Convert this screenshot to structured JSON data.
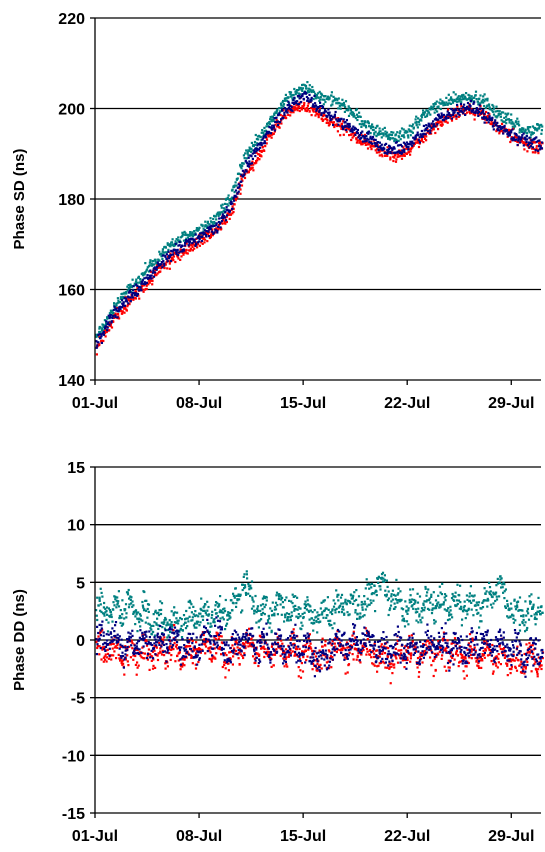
{
  "chart_data": [
    {
      "type": "scatter",
      "title": "",
      "xlabel": "",
      "ylabel": "Phase SD (ns)",
      "xlim": [
        "01-Jul",
        "31-Jul"
      ],
      "ylim": [
        140,
        220
      ],
      "yticks": [
        140,
        160,
        180,
        200,
        220
      ],
      "gridlines_y": [
        160,
        180,
        200,
        220
      ],
      "xtick_labels": [
        "01-Jul",
        "08-Jul",
        "15-Jul",
        "22-Jul",
        "29-Jul"
      ],
      "xtick_days": [
        1,
        8,
        15,
        22,
        29
      ],
      "series": [
        {
          "color": "#008080",
          "points": [
            [
              1,
              150
            ],
            [
              2,
              155
            ],
            [
              3,
              159.5
            ],
            [
              4,
              163
            ],
            [
              5,
              167
            ],
            [
              6,
              170
            ],
            [
              7,
              172
            ],
            [
              8,
              173.5
            ],
            [
              9,
              176
            ],
            [
              10,
              180.5
            ],
            [
              11,
              190
            ],
            [
              12,
              194
            ],
            [
              13,
              199
            ],
            [
              14,
              203
            ],
            [
              15,
              205
            ],
            [
              16,
              203
            ],
            [
              17,
              202
            ],
            [
              18,
              200
            ],
            [
              19,
              197
            ],
            [
              20,
              195
            ],
            [
              21,
              194
            ],
            [
              22,
              195
            ],
            [
              23,
              199
            ],
            [
              24,
              201
            ],
            [
              25,
              202
            ],
            [
              26,
              203
            ],
            [
              27,
              202
            ],
            [
              28,
              199
            ],
            [
              29,
              197
            ],
            [
              30,
              195
            ],
            [
              31,
              196
            ]
          ]
        },
        {
          "color": "#ff0000",
          "points": [
            [
              1,
              147
            ],
            [
              2,
              153
            ],
            [
              3,
              157
            ],
            [
              4,
              160
            ],
            [
              5,
              164
            ],
            [
              6,
              167
            ],
            [
              7,
              169
            ],
            [
              8,
              171
            ],
            [
              9,
              173
            ],
            [
              10,
              177
            ],
            [
              11,
              186
            ],
            [
              12,
              190
            ],
            [
              13,
              196
            ],
            [
              14,
              200
            ],
            [
              15,
              201
            ],
            [
              16,
              199
            ],
            [
              17,
              197
            ],
            [
              18,
              195
            ],
            [
              19,
              193
            ],
            [
              20,
              191
            ],
            [
              21,
              190
            ],
            [
              22,
              191
            ],
            [
              23,
              194
            ],
            [
              24,
              197
            ],
            [
              25,
              199
            ],
            [
              26,
              200
            ],
            [
              27,
              199
            ],
            [
              28,
              196
            ],
            [
              29,
              194
            ],
            [
              30,
              192
            ],
            [
              31,
              192
            ]
          ]
        },
        {
          "color": "#000080",
          "points": [
            [
              1,
              148
            ],
            [
              2,
              154
            ],
            [
              3,
              158
            ],
            [
              4,
              161
            ],
            [
              5,
              165
            ],
            [
              6,
              168
            ],
            [
              7,
              170
            ],
            [
              8,
              172
            ],
            [
              9,
              174
            ],
            [
              10,
              178
            ],
            [
              11,
              187
            ],
            [
              12,
              192
            ],
            [
              13,
              197
            ],
            [
              14,
              201
            ],
            [
              15,
              203
            ],
            [
              16,
              200
            ],
            [
              17,
              198
            ],
            [
              18,
              196
            ],
            [
              19,
              194
            ],
            [
              20,
              192
            ],
            [
              21,
              191
            ],
            [
              22,
              192
            ],
            [
              23,
              195
            ],
            [
              24,
              198
            ],
            [
              25,
              199
            ],
            [
              26,
              201
            ],
            [
              27,
              199
            ],
            [
              28,
              196
            ],
            [
              29,
              194
            ],
            [
              30,
              193
            ],
            [
              31,
              192
            ]
          ]
        }
      ]
    },
    {
      "type": "scatter",
      "title": "",
      "xlabel": "",
      "ylabel": "Phase DD (ns)",
      "xlim": [
        "01-Jul",
        "31-Jul"
      ],
      "ylim": [
        -15,
        15
      ],
      "yticks": [
        -15,
        -10,
        -5,
        0,
        5,
        10,
        15
      ],
      "gridlines_y": [
        -10,
        -5,
        0,
        5,
        10,
        15
      ],
      "xtick_labels": [
        "01-Jul",
        "08-Jul",
        "15-Jul",
        "22-Jul",
        "29-Jul"
      ],
      "xtick_days": [
        1,
        8,
        15,
        22,
        29
      ],
      "series": [
        {
          "color": "#008080",
          "points": [
            [
              1,
              3
            ],
            [
              2,
              2.5
            ],
            [
              3,
              3.2
            ],
            [
              4,
              2.4
            ],
            [
              5,
              2
            ],
            [
              6,
              1.6
            ],
            [
              7,
              1.8
            ],
            [
              8,
              2.2
            ],
            [
              9,
              2.5
            ],
            [
              10,
              2.6
            ],
            [
              11,
              5
            ],
            [
              12,
              2.4
            ],
            [
              13,
              3
            ],
            [
              14,
              2.8
            ],
            [
              15,
              2.5
            ],
            [
              16,
              2.3
            ],
            [
              17,
              2.7
            ],
            [
              18,
              3.4
            ],
            [
              19,
              3.2
            ],
            [
              20,
              5
            ],
            [
              21,
              3.6
            ],
            [
              22,
              2.8
            ],
            [
              23,
              3
            ],
            [
              24,
              3.2
            ],
            [
              25,
              3.1
            ],
            [
              26,
              3.3
            ],
            [
              27,
              3
            ],
            [
              28,
              4.8
            ],
            [
              29,
              2.6
            ],
            [
              30,
              2.4
            ],
            [
              31,
              3
            ]
          ]
        },
        {
          "color": "#ff0000",
          "points": [
            [
              1,
              -1
            ],
            [
              2,
              -0.5
            ],
            [
              3,
              -1.2
            ],
            [
              4,
              -0.8
            ],
            [
              5,
              -1
            ],
            [
              6,
              -0.7
            ],
            [
              7,
              -1.3
            ],
            [
              8,
              -0.6
            ],
            [
              9,
              -0.4
            ],
            [
              10,
              -1.5
            ],
            [
              11,
              -0.3
            ],
            [
              12,
              -0.5
            ],
            [
              13,
              -1
            ],
            [
              14,
              -0.8
            ],
            [
              15,
              -1.2
            ],
            [
              16,
              -1.4
            ],
            [
              17,
              -0.6
            ],
            [
              18,
              -1
            ],
            [
              19,
              -0.4
            ],
            [
              20,
              -1.6
            ],
            [
              21,
              -1.5
            ],
            [
              22,
              -0.8
            ],
            [
              23,
              -1.2
            ],
            [
              24,
              -1
            ],
            [
              25,
              -0.9
            ],
            [
              26,
              -1.3
            ],
            [
              27,
              -1.1
            ],
            [
              28,
              -1.4
            ],
            [
              29,
              -1.8
            ],
            [
              30,
              -1.5
            ],
            [
              31,
              -1.8
            ]
          ]
        },
        {
          "color": "#000080",
          "points": [
            [
              1,
              0
            ],
            [
              2,
              0.3
            ],
            [
              3,
              -0.5
            ],
            [
              4,
              0
            ],
            [
              5,
              -0.4
            ],
            [
              6,
              0.2
            ],
            [
              7,
              -0.6
            ],
            [
              8,
              0.1
            ],
            [
              9,
              0.4
            ],
            [
              10,
              -0.8
            ],
            [
              11,
              0.2
            ],
            [
              12,
              -0.2
            ],
            [
              13,
              -0.5
            ],
            [
              14,
              -0.3
            ],
            [
              15,
              -0.6
            ],
            [
              16,
              -1.8
            ],
            [
              17,
              -0.2
            ],
            [
              18,
              -0.4
            ],
            [
              19,
              0.3
            ],
            [
              20,
              -0.9
            ],
            [
              21,
              -0.7
            ],
            [
              22,
              -0.4
            ],
            [
              23,
              -0.8
            ],
            [
              24,
              -0.2
            ],
            [
              25,
              -0.5
            ],
            [
              26,
              -0.6
            ],
            [
              27,
              -0.3
            ],
            [
              28,
              -0.4
            ],
            [
              29,
              -0.8
            ],
            [
              30,
              -1.3
            ],
            [
              31,
              -0.7
            ]
          ]
        }
      ]
    }
  ]
}
